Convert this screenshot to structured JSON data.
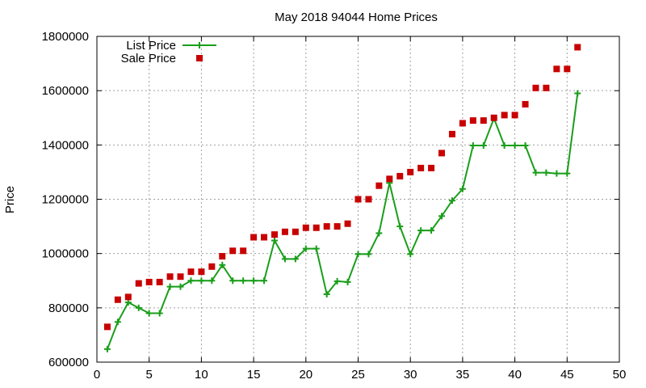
{
  "chart_data": {
    "type": "line",
    "title": "May 2018 94044 Home Prices",
    "xlabel": "",
    "ylabel": "Price",
    "xlim": [
      0,
      50
    ],
    "ylim": [
      600000,
      1800000
    ],
    "xticks": [
      0,
      5,
      10,
      15,
      20,
      25,
      30,
      35,
      40,
      45,
      50
    ],
    "yticks": [
      600000,
      800000,
      1000000,
      1200000,
      1400000,
      1600000,
      1800000
    ],
    "grid": true,
    "legend_position": "top-left",
    "series": [
      {
        "name": "List Price",
        "style": "line-points",
        "color": "#1a9e1a",
        "marker": "plus",
        "x": [
          1,
          2,
          3,
          4,
          5,
          6,
          7,
          8,
          9,
          10,
          11,
          12,
          13,
          14,
          15,
          16,
          17,
          18,
          19,
          20,
          21,
          22,
          23,
          24,
          25,
          26,
          27,
          28,
          29,
          30,
          31,
          32,
          33,
          34,
          35,
          36,
          37,
          38,
          39,
          40,
          41,
          42,
          43,
          44,
          45,
          46
        ],
        "values": [
          648000,
          748000,
          820000,
          800000,
          780000,
          780000,
          878000,
          878000,
          900000,
          900000,
          900000,
          958000,
          900000,
          900000,
          900000,
          900000,
          1048000,
          980000,
          980000,
          1018000,
          1018000,
          850000,
          898000,
          895000,
          998000,
          998000,
          1075000,
          1260000,
          1100000,
          998000,
          1085000,
          1085000,
          1138000,
          1195000,
          1238000,
          1398000,
          1398000,
          1498000,
          1398000,
          1398000,
          1398000,
          1298000,
          1298000,
          1295000,
          1295000,
          1590000
        ]
      },
      {
        "name": "Sale Price",
        "style": "points",
        "color": "#c80000",
        "marker": "square",
        "x": [
          1,
          2,
          3,
          4,
          5,
          6,
          7,
          8,
          9,
          10,
          11,
          12,
          13,
          14,
          15,
          16,
          17,
          18,
          19,
          20,
          21,
          22,
          23,
          24,
          25,
          26,
          27,
          28,
          29,
          30,
          31,
          32,
          33,
          34,
          35,
          36,
          37,
          38,
          39,
          40,
          41,
          42,
          43,
          44,
          45,
          46
        ],
        "values": [
          730000,
          830000,
          840000,
          890000,
          895000,
          895000,
          915000,
          915000,
          933000,
          933000,
          952000,
          990000,
          1010000,
          1010000,
          1060000,
          1060000,
          1070000,
          1080000,
          1080000,
          1095000,
          1095000,
          1100000,
          1100000,
          1110000,
          1200000,
          1200000,
          1250000,
          1275000,
          1285000,
          1300000,
          1315000,
          1315000,
          1370000,
          1440000,
          1480000,
          1490000,
          1490000,
          1500000,
          1510000,
          1510000,
          1550000,
          1610000,
          1610000,
          1680000,
          1680000,
          1760000
        ]
      }
    ]
  }
}
